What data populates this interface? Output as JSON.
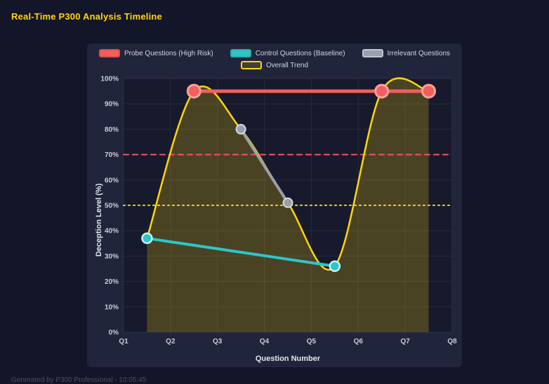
{
  "page": {
    "title": "Real-Time P300 Analysis Timeline",
    "footer": "Generated by P300 Professional - 10:05:45"
  },
  "chart_data": {
    "type": "line",
    "title": "Real-Time P300 Analysis Timeline",
    "xlabel": "Question Number",
    "ylabel": "Deception Level (%)",
    "x_ticks": [
      "Q1",
      "Q2",
      "Q3",
      "Q4",
      "Q5",
      "Q6",
      "Q7",
      "Q8"
    ],
    "xlim": [
      1,
      8
    ],
    "ylim": [
      0,
      100
    ],
    "y_tick_step": 10,
    "y_tick_suffix": "%",
    "grid": true,
    "legend_position": "top",
    "series": [
      {
        "name": "Probe Questions (High Risk)",
        "x": [
          2.5,
          6.5,
          7.5
        ],
        "values": [
          95,
          95,
          95
        ],
        "color": "#f25f5c",
        "point_border": "#f9a19e",
        "point_border_width": 3,
        "swatch_bg": "#f25f5c",
        "swatch_border": "#e04b4b",
        "line_width": 5,
        "point_radius": 9,
        "smooth": false,
        "fill": false
      },
      {
        "name": "Control Questions (Baseline)",
        "x": [
          1.5,
          5.5
        ],
        "values": [
          37,
          26
        ],
        "color": "#2fc5c7",
        "point_border": "#c9f2f3",
        "point_border_width": 2.5,
        "swatch_bg": "#2fc5c7",
        "swatch_border": "#28aeb0",
        "line_width": 4,
        "point_radius": 7,
        "smooth": false,
        "fill": false
      },
      {
        "name": "Irrelevant Questions",
        "x": [
          3.5,
          4.5
        ],
        "values": [
          80,
          51
        ],
        "color": "#9aa0a8",
        "point_border": "#d8dbe0",
        "point_border_width": 2,
        "swatch_bg": "#9aa0a8",
        "swatch_border": "#c2c6cc",
        "line_width": 4,
        "point_radius": 6.5,
        "smooth": false,
        "fill": false
      },
      {
        "name": "Overall Trend",
        "x": [
          1.5,
          2.5,
          3.5,
          4.5,
          5.5,
          6.5,
          7.5
        ],
        "values": [
          37,
          95,
          80,
          51,
          26,
          95,
          95
        ],
        "color": "#ffd60a",
        "point_border": "#ffd60a",
        "point_border_width": 0,
        "swatch_bg": "rgba(255,214,10,0.15)",
        "swatch_border": "#ffd60a",
        "line_width": 2.5,
        "point_radius": 0,
        "smooth": true,
        "fill": true,
        "fill_color": "rgba(255,214,10,0.22)"
      }
    ],
    "thresholds": [
      {
        "value": 70,
        "color": "#ff4d6d",
        "style": "dashed",
        "dash": "7 6"
      },
      {
        "value": 50,
        "color": "#ffd60a",
        "style": "dotted",
        "dash": "2 5"
      }
    ]
  }
}
